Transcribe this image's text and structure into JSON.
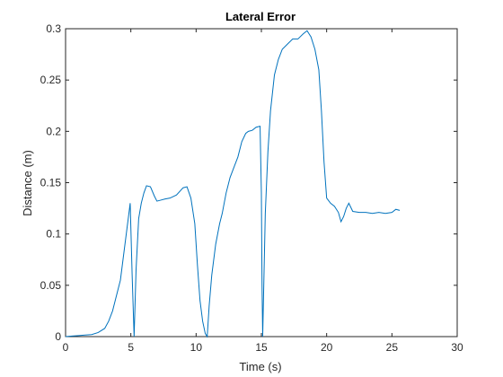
{
  "chart_data": {
    "type": "line",
    "title": "Lateral Error",
    "xlabel": "Time (s)",
    "ylabel": "Distance (m)",
    "xlim": [
      0,
      30
    ],
    "ylim": [
      0,
      0.3
    ],
    "xticks": [
      0,
      5,
      10,
      15,
      20,
      25,
      30
    ],
    "xtick_labels": [
      "0",
      "5",
      "10",
      "15",
      "20",
      "25",
      "30"
    ],
    "yticks": [
      0,
      0.05,
      0.1,
      0.15,
      0.2,
      0.25,
      0.3
    ],
    "ytick_labels": [
      "0",
      "0.05",
      "0.1",
      "0.15",
      "0.2",
      "0.25",
      "0.3"
    ],
    "grid": false,
    "line_color": "#0072BD",
    "series": [
      {
        "x": [
          0,
          0.5,
          1.0,
          1.5,
          2.0,
          2.5,
          3.0,
          3.3,
          3.6,
          3.9,
          4.2,
          4.4,
          4.6,
          4.8,
          4.95,
          5.1,
          5.25,
          5.4,
          5.6,
          5.8,
          6.0,
          6.2,
          6.5,
          6.8,
          7.0,
          7.3,
          7.6,
          8.0,
          8.5,
          9.0,
          9.3,
          9.6,
          9.9,
          10.1,
          10.3,
          10.5,
          10.7,
          10.85,
          11.0,
          11.2,
          11.5,
          11.8,
          12.0,
          12.3,
          12.6,
          12.9,
          13.2,
          13.5,
          13.8,
          14.0,
          14.3,
          14.6,
          14.9,
          15.0,
          15.05,
          15.1,
          15.2,
          15.3,
          15.5,
          15.7,
          16.0,
          16.3,
          16.6,
          17.0,
          17.4,
          17.8,
          18.2,
          18.5,
          18.8,
          19.1,
          19.4,
          19.6,
          19.8,
          20.0,
          20.3,
          20.6,
          20.9,
          21.1,
          21.3,
          21.5,
          21.7,
          22.0,
          22.5,
          23.0,
          23.5,
          24.0,
          24.5,
          25.0,
          25.3,
          25.6
        ],
        "y": [
          0.0,
          0.0005,
          0.001,
          0.0015,
          0.002,
          0.004,
          0.008,
          0.015,
          0.025,
          0.04,
          0.055,
          0.075,
          0.095,
          0.115,
          0.13,
          0.06,
          0.0,
          0.065,
          0.115,
          0.13,
          0.14,
          0.147,
          0.146,
          0.137,
          0.132,
          0.133,
          0.134,
          0.135,
          0.138,
          0.145,
          0.146,
          0.135,
          0.11,
          0.07,
          0.035,
          0.015,
          0.003,
          0.0,
          0.03,
          0.06,
          0.09,
          0.11,
          0.12,
          0.14,
          0.155,
          0.165,
          0.175,
          0.19,
          0.198,
          0.2,
          0.201,
          0.204,
          0.205,
          0.14,
          0.05,
          0.0,
          0.06,
          0.12,
          0.18,
          0.22,
          0.255,
          0.27,
          0.28,
          0.285,
          0.29,
          0.29,
          0.295,
          0.298,
          0.292,
          0.28,
          0.26,
          0.22,
          0.17,
          0.135,
          0.13,
          0.127,
          0.121,
          0.112,
          0.117,
          0.125,
          0.13,
          0.122,
          0.121,
          0.121,
          0.12,
          0.121,
          0.12,
          0.121,
          0.124,
          0.123
        ]
      }
    ]
  }
}
